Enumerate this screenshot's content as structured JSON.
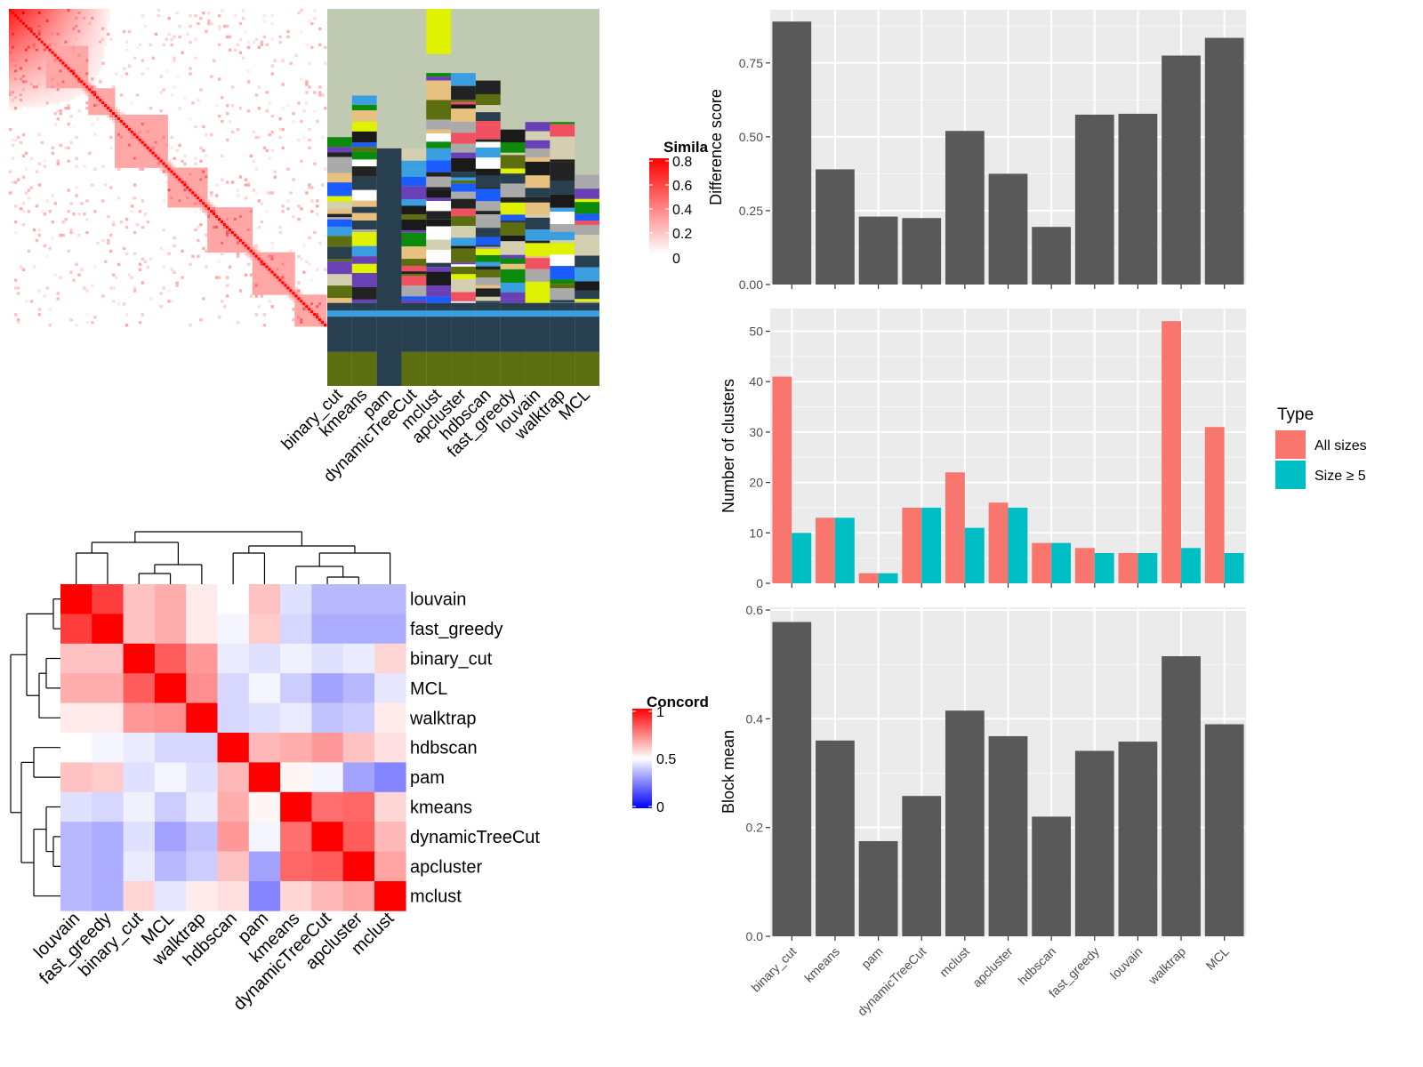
{
  "heatmap_top": {
    "legend_title": "Simila",
    "legend_ticks": [
      "0.8",
      "0.6",
      "0.4",
      "0.2",
      "0"
    ],
    "column_labels": [
      "binary_cut",
      "kmeans",
      "pam",
      "dynamicTreeCut",
      "mclust",
      "apcluster",
      "hdbscan",
      "fast_greedy",
      "louvain",
      "walktrap",
      "MCL"
    ],
    "colors": {
      "high": "#ff0000",
      "low": "#ffffff",
      "background_tiles": "#c0c9b1"
    }
  },
  "chart_data": [
    {
      "type": "bar",
      "ylabel": "Difference score",
      "categories": [
        "binary_cut",
        "kmeans",
        "pam",
        "dynamicTreeCut",
        "mclust",
        "apcluster",
        "hdbscan",
        "fast_greedy",
        "louvain",
        "walktrap",
        "MCL"
      ],
      "values": [
        0.89,
        0.39,
        0.23,
        0.225,
        0.52,
        0.375,
        0.195,
        0.575,
        0.578,
        0.775,
        0.835
      ],
      "ylim": [
        0,
        0.93
      ],
      "yticks": [
        "0.00",
        "0.25",
        "0.50",
        "0.75"
      ],
      "grid": true,
      "colors": {
        "bar": "#595959",
        "panel": "#ebebeb"
      }
    },
    {
      "type": "bar",
      "ylabel": "Number of clusters",
      "categories": [
        "binary_cut",
        "kmeans",
        "pam",
        "dynamicTreeCut",
        "mclust",
        "apcluster",
        "hdbscan",
        "fast_greedy",
        "louvain",
        "walktrap",
        "MCL"
      ],
      "series": [
        {
          "name": "All sizes",
          "values": [
            41,
            13,
            2,
            15,
            22,
            16,
            8,
            7,
            6,
            52,
            31
          ],
          "color": "#f8766d"
        },
        {
          "name": "Size ≥ 5",
          "values": [
            10,
            13,
            2,
            15,
            11,
            15,
            8,
            6,
            6,
            7,
            6
          ],
          "color": "#00bfc4"
        }
      ],
      "ylim": [
        0,
        54.5
      ],
      "yticks": [
        "0",
        "10",
        "20",
        "30",
        "40",
        "50"
      ],
      "legend_title": "Type",
      "legend_position": "right",
      "grid": true
    },
    {
      "type": "bar",
      "ylabel": "Block mean",
      "categories": [
        "binary_cut",
        "kmeans",
        "pam",
        "dynamicTreeCut",
        "mclust",
        "apcluster",
        "hdbscan",
        "fast_greedy",
        "louvain",
        "walktrap",
        "MCL"
      ],
      "values": [
        0.578,
        0.36,
        0.175,
        0.258,
        0.415,
        0.368,
        0.22,
        0.341,
        0.358,
        0.515,
        0.39
      ],
      "ylim": [
        0,
        0.605
      ],
      "yticks": [
        "0.0",
        "0.2",
        "0.4",
        "0.6"
      ],
      "grid": true,
      "colors": {
        "bar": "#595959",
        "panel": "#ebebeb"
      }
    },
    {
      "type": "heatmap",
      "legend_title": "Concord",
      "legend_ticks": [
        "1",
        "0.5",
        "0"
      ],
      "rows": [
        "louvain",
        "fast_greedy",
        "binary_cut",
        "MCL",
        "walktrap",
        "hdbscan",
        "pam",
        "kmeans",
        "dynamicTreeCut",
        "apcluster",
        "mclust"
      ],
      "columns": [
        "louvain",
        "fast_greedy",
        "binary_cut",
        "MCL",
        "walktrap",
        "hdbscan",
        "pam",
        "kmeans",
        "dynamicTreeCut",
        "apcluster",
        "mclust"
      ],
      "values": [
        [
          1.0,
          0.88,
          0.62,
          0.66,
          0.54,
          0.5,
          0.62,
          0.44,
          0.36,
          0.36,
          0.36
        ],
        [
          0.88,
          1.0,
          0.62,
          0.66,
          0.54,
          0.48,
          0.6,
          0.42,
          0.34,
          0.34,
          0.34
        ],
        [
          0.62,
          0.62,
          1.0,
          0.82,
          0.7,
          0.46,
          0.44,
          0.47,
          0.44,
          0.46,
          0.58
        ],
        [
          0.66,
          0.66,
          0.82,
          1.0,
          0.72,
          0.42,
          0.48,
          0.4,
          0.32,
          0.36,
          0.45
        ],
        [
          0.54,
          0.54,
          0.7,
          0.72,
          1.0,
          0.42,
          0.44,
          0.46,
          0.38,
          0.4,
          0.54
        ],
        [
          0.5,
          0.48,
          0.46,
          0.42,
          0.42,
          1.0,
          0.64,
          0.66,
          0.7,
          0.62,
          0.56
        ],
        [
          0.62,
          0.6,
          0.44,
          0.48,
          0.44,
          0.64,
          1.0,
          0.52,
          0.48,
          0.32,
          0.26
        ],
        [
          0.44,
          0.42,
          0.47,
          0.4,
          0.46,
          0.66,
          0.52,
          1.0,
          0.78,
          0.8,
          0.58
        ],
        [
          0.36,
          0.34,
          0.44,
          0.32,
          0.38,
          0.7,
          0.48,
          0.78,
          1.0,
          0.82,
          0.64
        ],
        [
          0.36,
          0.34,
          0.46,
          0.36,
          0.4,
          0.62,
          0.32,
          0.8,
          0.82,
          1.0,
          0.68
        ],
        [
          0.36,
          0.34,
          0.58,
          0.45,
          0.54,
          0.56,
          0.26,
          0.58,
          0.64,
          0.68,
          1.0
        ]
      ],
      "colors": {
        "high": "#ff0000",
        "mid": "#ffffff",
        "low": "#0000ff"
      }
    }
  ]
}
